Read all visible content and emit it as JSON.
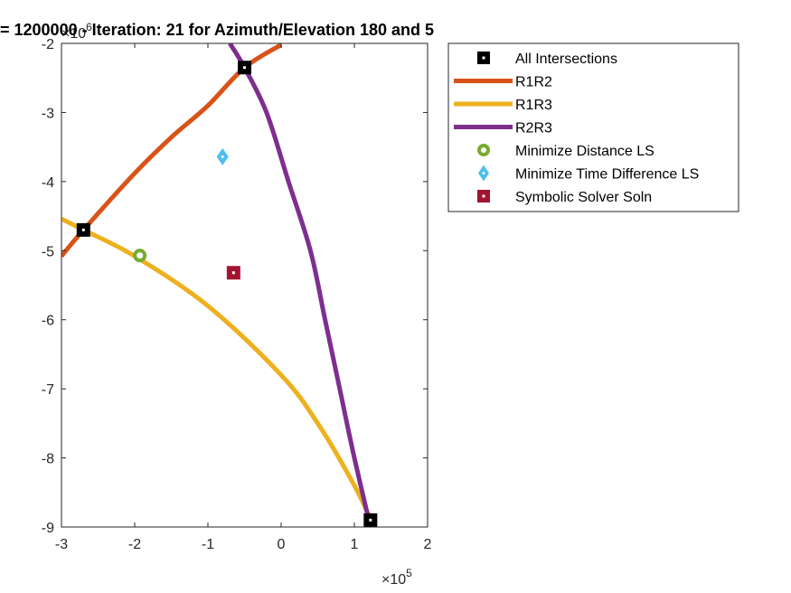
{
  "chart_data": {
    "type": "line",
    "title": "= 1200000 - Iteration: 21 for Azimuth/Elevation 180 and 5",
    "xlim": [
      -300000,
      200000
    ],
    "ylim": [
      -9000000,
      -2000000
    ],
    "x_ticks": [
      -300000,
      -200000,
      -100000,
      0,
      100000,
      200000
    ],
    "x_tick_labels": [
      "-3",
      "-2",
      "-1",
      "0",
      "1",
      "2"
    ],
    "y_ticks": [
      -9000000,
      -8000000,
      -7000000,
      -6000000,
      -5000000,
      -4000000,
      -3000000,
      -2000000
    ],
    "y_tick_labels": [
      "-9",
      "-8",
      "-7",
      "-6",
      "-5",
      "-4",
      "-3",
      "-2"
    ],
    "x_exponent": {
      "base": "×10",
      "power": "5"
    },
    "y_exponent": {
      "base": "×10",
      "power": "6"
    },
    "grid": false,
    "legend_position": "outside-top-right",
    "series": [
      {
        "name": "All Intersections",
        "kind": "marker",
        "marker": "square",
        "color": "#000000",
        "points": [
          [
            -270000,
            -4700000
          ],
          [
            -50000,
            -2350000
          ],
          [
            122000,
            -8900000
          ]
        ]
      },
      {
        "name": "R1R2",
        "kind": "line",
        "color": "#D95319",
        "points": [
          [
            -300000,
            -5080000
          ],
          [
            -270000,
            -4700000
          ],
          [
            -200000,
            -3880000
          ],
          [
            -150000,
            -3360000
          ],
          [
            -100000,
            -2900000
          ],
          [
            -50000,
            -2350000
          ],
          [
            0,
            -2020000
          ]
        ]
      },
      {
        "name": "R1R3",
        "kind": "line",
        "color": "#EDB120",
        "points": [
          [
            -300000,
            -4540000
          ],
          [
            -270000,
            -4700000
          ],
          [
            -200000,
            -5080000
          ],
          [
            -100000,
            -5800000
          ],
          [
            0,
            -6800000
          ],
          [
            50000,
            -7500000
          ],
          [
            100000,
            -8400000
          ],
          [
            127000,
            -9000000
          ]
        ]
      },
      {
        "name": "R2R3",
        "kind": "line",
        "color": "#7E2F8E",
        "points": [
          [
            -70000,
            -2000000
          ],
          [
            -50000,
            -2350000
          ],
          [
            -20000,
            -3000000
          ],
          [
            10000,
            -4000000
          ],
          [
            40000,
            -5000000
          ],
          [
            60000,
            -6000000
          ],
          [
            80000,
            -7000000
          ],
          [
            100000,
            -8000000
          ],
          [
            122000,
            -9000000
          ]
        ]
      },
      {
        "name": "Minimize Distance LS",
        "kind": "marker",
        "marker": "circle",
        "color": "#77AC30",
        "points": [
          [
            -193000,
            -5070000
          ]
        ]
      },
      {
        "name": "Minimize Time Difference LS",
        "kind": "marker",
        "marker": "diamond",
        "color": "#4DBEEE",
        "points": [
          [
            -80000,
            -3640000
          ]
        ]
      },
      {
        "name": "Symbolic Solver Soln",
        "kind": "marker",
        "marker": "square",
        "color": "#A2142F",
        "points": [
          [
            -65000,
            -5320000
          ]
        ]
      }
    ]
  }
}
